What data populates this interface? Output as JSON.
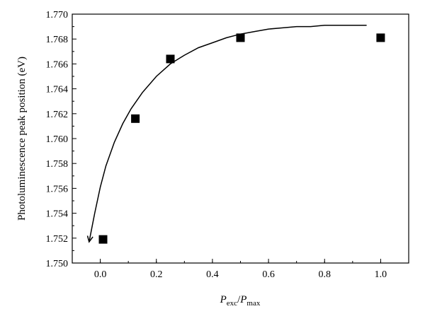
{
  "chart_data": {
    "type": "scatter",
    "ylabel": "Photoluminescence peak position (eV)",
    "xlabel_parts": {
      "p1": "P",
      "sub1": "exc",
      "slash": "/",
      "p2": "P",
      "sub2": "max"
    },
    "xlim": [
      -0.1,
      1.1
    ],
    "ylim": [
      1.75,
      1.77
    ],
    "x_ticks": [
      0.0,
      0.2,
      0.4,
      0.6,
      0.8,
      1.0
    ],
    "x_tick_labels": [
      "0.0",
      "0.2",
      "0.4",
      "0.6",
      "0.8",
      "1.0"
    ],
    "y_ticks": [
      1.75,
      1.752,
      1.754,
      1.756,
      1.758,
      1.76,
      1.762,
      1.764,
      1.766,
      1.768,
      1.77
    ],
    "y_tick_labels": [
      "1.750",
      "1.752",
      "1.754",
      "1.756",
      "1.758",
      "1.760",
      "1.762",
      "1.764",
      "1.766",
      "1.768",
      "1.770"
    ],
    "points": [
      {
        "x": 0.01,
        "y": 1.7519
      },
      {
        "x": 0.125,
        "y": 1.7616
      },
      {
        "x": 0.25,
        "y": 1.7664
      },
      {
        "x": 0.5,
        "y": 1.7681
      },
      {
        "x": 1.0,
        "y": 1.7681
      }
    ],
    "fit_curve": {
      "x": [
        -0.04,
        -0.02,
        0.0,
        0.02,
        0.05,
        0.08,
        0.11,
        0.15,
        0.2,
        0.25,
        0.3,
        0.35,
        0.4,
        0.45,
        0.5,
        0.55,
        0.6,
        0.65,
        0.7,
        0.75,
        0.8,
        0.85,
        0.9,
        0.95
      ],
      "y": [
        1.7517,
        1.754,
        1.7561,
        1.7578,
        1.7597,
        1.7612,
        1.7624,
        1.7637,
        1.765,
        1.766,
        1.7667,
        1.7673,
        1.7677,
        1.7681,
        1.7684,
        1.7686,
        1.7688,
        1.7689,
        1.769,
        1.769,
        1.7691,
        1.7691,
        1.7691,
        1.7691
      ],
      "arrow_at_start": true
    },
    "marker": "square",
    "marker_color": "#000000",
    "line_color": "#000000"
  }
}
